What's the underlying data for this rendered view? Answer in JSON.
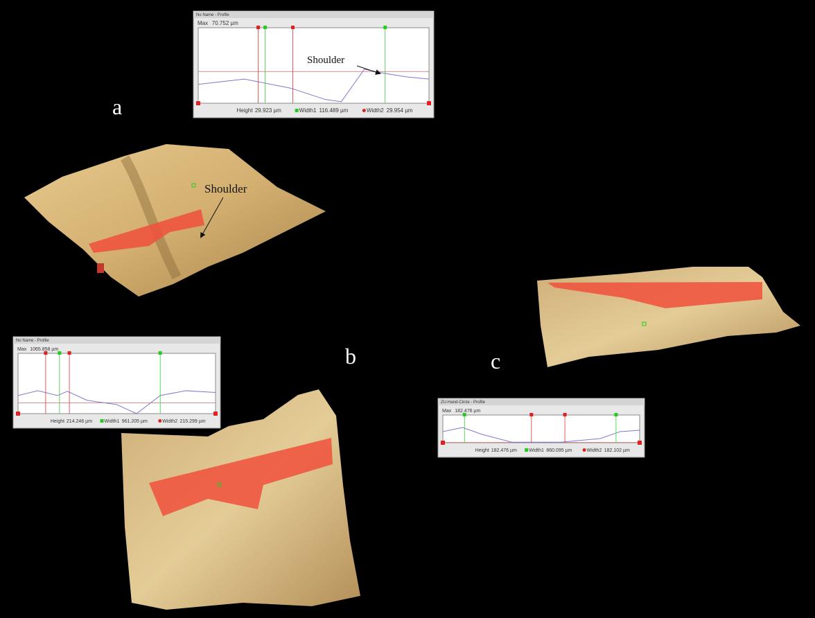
{
  "panels": [
    {
      "label": "a",
      "annotation": "Shoulder",
      "profile": {
        "title": "No Name - Profile",
        "max_label": "Max",
        "max_value": "70.752 µm",
        "height_label": "Height",
        "height_value": "29.923 µm",
        "width1_label": "Width1",
        "width1_value": "116.489 µm",
        "width2_label": "Width2",
        "width2_value": "29.954 µm",
        "annotation": "Shoulder"
      }
    },
    {
      "label": "b",
      "profile": {
        "title": "No Name - Profile",
        "max_label": "Max",
        "max_value": "1065.858 µm",
        "height_label": "Height",
        "height_value": "214.246 µm",
        "width1_label": "Width1",
        "width1_value": "961.205 µm",
        "width2_label": "Width2",
        "width2_value": "215.299 µm"
      }
    },
    {
      "label": "c",
      "profile": {
        "title": "ZU-Hand-Circle - Profile",
        "max_label": "Max",
        "max_value": "182.476 µm",
        "height_label": "Height",
        "height_value": "182.476 µm",
        "width1_label": "Width1",
        "width1_value": "860.095 µm",
        "width2_label": "Width2",
        "width2_value": "182.102 µm"
      }
    }
  ]
}
